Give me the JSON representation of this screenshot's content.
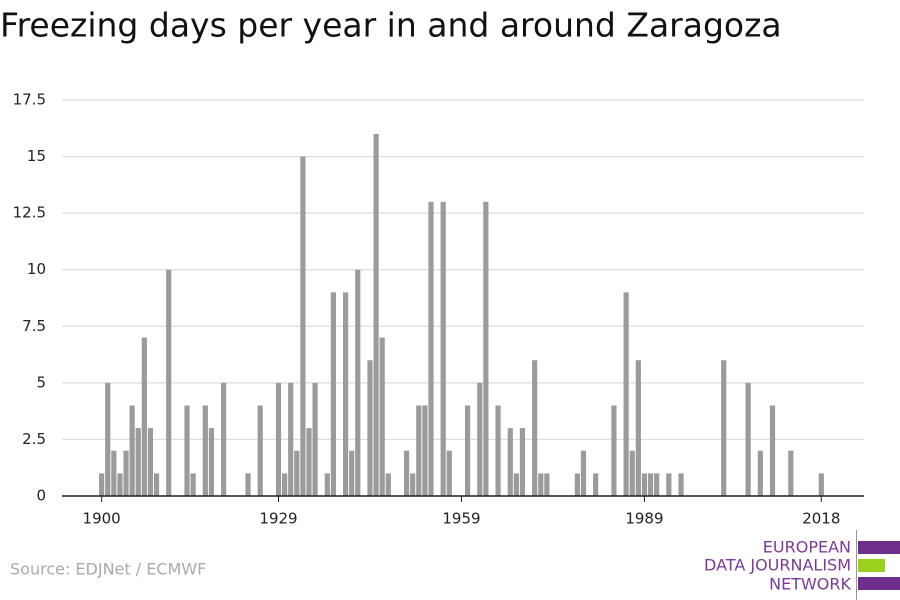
{
  "chart_data": {
    "type": "bar",
    "title": "Freezing days per year in and around Zaragoza",
    "source": "Source: EDJNet / ECMWF",
    "logo": [
      "EUROPEAN",
      "DATA JOURNALISM",
      "NETWORK"
    ],
    "x": [
      1900,
      1901,
      1902,
      1903,
      1904,
      1905,
      1906,
      1907,
      1908,
      1909,
      1910,
      1911,
      1912,
      1913,
      1914,
      1915,
      1916,
      1917,
      1918,
      1919,
      1920,
      1921,
      1922,
      1923,
      1924,
      1925,
      1926,
      1927,
      1928,
      1929,
      1930,
      1931,
      1932,
      1933,
      1934,
      1935,
      1936,
      1937,
      1938,
      1939,
      1940,
      1941,
      1942,
      1943,
      1944,
      1945,
      1946,
      1947,
      1948,
      1949,
      1950,
      1951,
      1952,
      1953,
      1954,
      1955,
      1956,
      1957,
      1958,
      1959,
      1960,
      1961,
      1962,
      1963,
      1964,
      1965,
      1966,
      1967,
      1968,
      1969,
      1970,
      1971,
      1972,
      1973,
      1974,
      1975,
      1976,
      1977,
      1978,
      1979,
      1980,
      1981,
      1982,
      1983,
      1984,
      1985,
      1986,
      1987,
      1988,
      1989,
      1990,
      1991,
      1992,
      1993,
      1994,
      1995,
      1996,
      1997,
      1998,
      1999,
      2000,
      2001,
      2002,
      2003,
      2004,
      2005,
      2006,
      2007,
      2008,
      2009,
      2010,
      2011,
      2012,
      2013,
      2014,
      2015,
      2016,
      2017,
      2018
    ],
    "values": [
      1,
      5,
      2,
      1,
      2,
      4,
      3,
      7,
      3,
      1,
      0,
      10,
      0,
      0,
      4,
      1,
      0,
      4,
      3,
      0,
      5,
      0,
      0,
      0,
      1,
      0,
      4,
      0,
      0,
      5,
      1,
      5,
      2,
      15,
      3,
      5,
      0,
      1,
      9,
      0,
      9,
      2,
      10,
      0,
      6,
      16,
      7,
      1,
      0,
      0,
      2,
      1,
      4,
      4,
      13,
      0,
      13,
      2,
      0,
      0,
      4,
      0,
      5,
      13,
      0,
      4,
      0,
      3,
      1,
      3,
      0,
      6,
      1,
      1,
      0,
      0,
      0,
      0,
      1,
      2,
      0,
      1,
      0,
      0,
      4,
      0,
      9,
      2,
      6,
      1,
      1,
      1,
      0,
      1,
      0,
      1,
      0,
      0,
      0,
      0,
      0,
      0,
      6,
      0,
      0,
      0,
      5,
      0,
      2,
      0,
      4,
      0,
      0,
      2,
      0,
      0,
      0,
      0,
      1
    ],
    "color": "#9b9b9b",
    "xlim": [
      1893.5,
      2025
    ],
    "xticks": [
      1900,
      1929,
      1959,
      1989,
      2018
    ],
    "ylim": [
      0,
      17.5
    ],
    "yticks": [
      0,
      2.5,
      5,
      7.5,
      10,
      12.5,
      15,
      17.5
    ],
    "grid": true
  }
}
